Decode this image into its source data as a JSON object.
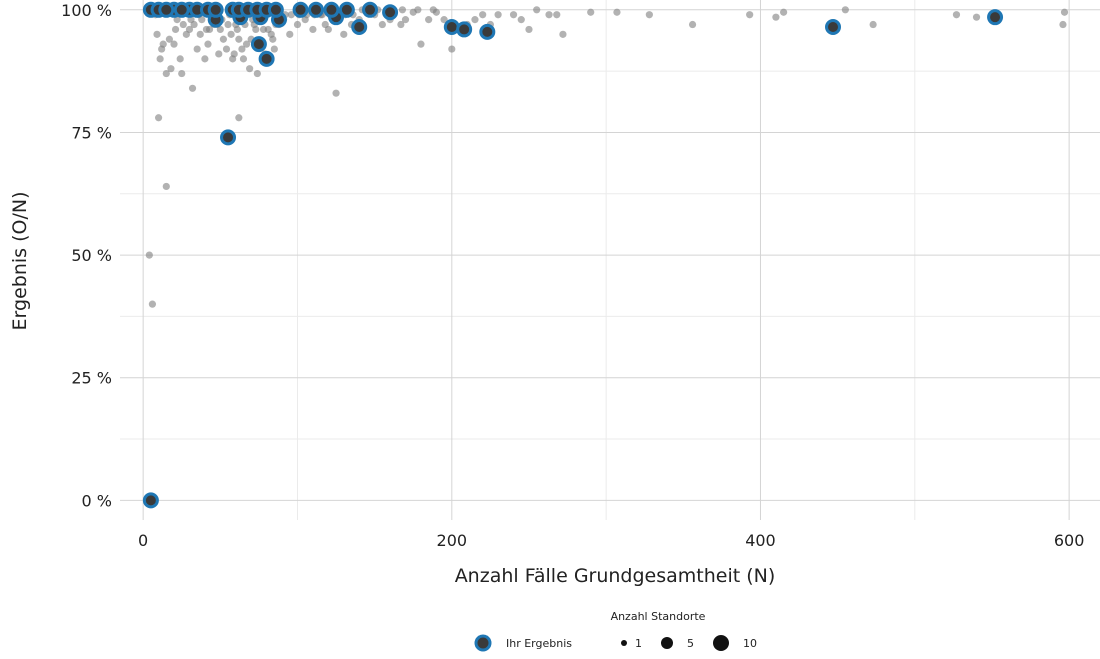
{
  "chart_data": {
    "type": "scatter",
    "xlabel": "Anzahl Fälle Grundgesamtheit (N)",
    "ylabel": "Ergebnis (O/N)",
    "xlim": [
      -15,
      620
    ],
    "ylim": [
      -4,
      102
    ],
    "x_ticks": [
      0,
      200,
      400,
      600
    ],
    "x_tick_labels": [
      "0",
      "200",
      "400",
      "600"
    ],
    "y_ticks": [
      0,
      25,
      50,
      75,
      100
    ],
    "y_tick_labels": [
      "0 %",
      "25 %",
      "50 %",
      "75 %",
      "100 %"
    ],
    "grid": true,
    "legend_position": "bottom",
    "legend": {
      "title": "Anzahl Standorte",
      "own_label": "Ihr Ergebnis",
      "size_labels": [
        "1",
        "5",
        "10"
      ]
    },
    "colors": {
      "others": "#7f7f7f",
      "own_fill": "#3a3a3a",
      "own_ring": "#1f77b4"
    },
    "series": [
      {
        "name": "Ihr Ergebnis",
        "points": [
          [
            5,
            0
          ],
          [
            55,
            74
          ],
          [
            75,
            93
          ],
          [
            80,
            90
          ],
          [
            47,
            98
          ],
          [
            63,
            98.5
          ],
          [
            76,
            98.5
          ],
          [
            88,
            98
          ],
          [
            125,
            98.5
          ],
          [
            140,
            96.5
          ],
          [
            160,
            99.5
          ],
          [
            200,
            96.5
          ],
          [
            208,
            96
          ],
          [
            223,
            95.5
          ],
          [
            447,
            96.5
          ],
          [
            552,
            98.5
          ],
          [
            5,
            100
          ],
          [
            10,
            100
          ],
          [
            20,
            100
          ],
          [
            30,
            100
          ],
          [
            35,
            100
          ],
          [
            42,
            100
          ],
          [
            47,
            100
          ],
          [
            58,
            100
          ],
          [
            62,
            100
          ],
          [
            68,
            100
          ],
          [
            74,
            100
          ],
          [
            80,
            100
          ],
          [
            86,
            100
          ],
          [
            102,
            100
          ],
          [
            112,
            100
          ],
          [
            122,
            100
          ],
          [
            132,
            100
          ],
          [
            147,
            100
          ],
          [
            15,
            100
          ],
          [
            25,
            100
          ]
        ]
      },
      {
        "name": "",
        "points": [
          [
            4,
            50
          ],
          [
            6,
            40
          ],
          [
            10,
            78
          ],
          [
            15,
            64
          ],
          [
            62,
            78
          ],
          [
            125,
            83
          ],
          [
            15,
            87
          ],
          [
            25,
            87
          ],
          [
            32,
            84
          ],
          [
            11,
            90
          ],
          [
            18,
            88
          ],
          [
            40,
            90
          ],
          [
            58,
            90
          ],
          [
            65,
            90
          ],
          [
            85,
            92
          ],
          [
            12,
            92
          ],
          [
            20,
            93
          ],
          [
            70,
            94
          ],
          [
            95,
            95
          ],
          [
            30,
            96
          ],
          [
            50,
            96
          ],
          [
            60,
            97
          ],
          [
            110,
            96
          ],
          [
            130,
            95
          ],
          [
            180,
            93
          ],
          [
            200,
            92
          ],
          [
            250,
            96
          ],
          [
            272,
            95
          ],
          [
            356,
            97
          ],
          [
            473,
            97
          ],
          [
            596,
            97
          ],
          [
            8,
            99
          ],
          [
            22,
            98
          ],
          [
            45,
            98
          ],
          [
            90,
            98
          ],
          [
            115,
            99
          ],
          [
            150,
            99
          ],
          [
            175,
            99.5
          ],
          [
            190,
            99.5
          ],
          [
            230,
            99
          ],
          [
            263,
            99
          ],
          [
            290,
            99.5
          ],
          [
            307,
            99.5
          ],
          [
            328,
            99
          ],
          [
            393,
            99
          ],
          [
            410,
            98.5
          ],
          [
            415,
            99.5
          ],
          [
            455,
            100
          ],
          [
            527,
            99
          ],
          [
            540,
            98.5
          ],
          [
            597,
            99.5
          ],
          [
            17,
            94
          ],
          [
            28,
            95
          ],
          [
            37,
            95
          ],
          [
            43,
            96
          ],
          [
            52,
            94
          ],
          [
            67,
            93
          ],
          [
            73,
            96
          ],
          [
            83,
            95
          ],
          [
            100,
            97
          ],
          [
            120,
            96
          ],
          [
            135,
            97
          ],
          [
            155,
            97
          ],
          [
            167,
            97
          ],
          [
            185,
            98
          ],
          [
            195,
            98
          ],
          [
            215,
            98
          ],
          [
            240,
            99
          ],
          [
            255,
            100
          ],
          [
            268,
            99
          ],
          [
            55,
            97
          ],
          [
            78,
            96
          ],
          [
            88,
            97
          ],
          [
            92,
            99
          ],
          [
            105,
            98
          ],
          [
            170,
            98
          ],
          [
            198,
            96
          ],
          [
            225,
            97
          ],
          [
            33,
            97
          ],
          [
            38,
            98
          ],
          [
            48,
            97
          ],
          [
            57,
            95
          ],
          [
            62,
            94
          ],
          [
            72,
            97
          ],
          [
            140,
            98
          ],
          [
            160,
            98
          ],
          [
            210,
            97
          ],
          [
            220,
            99
          ],
          [
            245,
            98
          ],
          [
            142,
            100
          ],
          [
            152,
            100
          ],
          [
            168,
            100
          ],
          [
            178,
            100
          ],
          [
            188,
            100
          ],
          [
            118,
            97
          ],
          [
            128,
            99
          ],
          [
            9,
            95
          ],
          [
            13,
            93
          ],
          [
            21,
            96
          ],
          [
            26,
            97
          ],
          [
            31,
            98
          ],
          [
            36,
            99
          ],
          [
            41,
            96
          ],
          [
            46,
            97
          ],
          [
            51,
            98
          ],
          [
            56,
            99
          ],
          [
            61,
            96
          ],
          [
            66,
            97
          ],
          [
            71,
            98
          ],
          [
            76,
            99
          ],
          [
            81,
            96
          ],
          [
            86,
            97
          ],
          [
            91,
            98
          ],
          [
            96,
            99
          ],
          [
            101,
            99
          ],
          [
            106,
            99
          ],
          [
            111,
            99
          ],
          [
            116,
            99
          ],
          [
            121,
            99
          ],
          [
            126,
            99
          ],
          [
            131,
            99
          ],
          [
            136,
            99
          ],
          [
            24,
            90
          ],
          [
            35,
            92
          ],
          [
            42,
            93
          ],
          [
            49,
            91
          ],
          [
            54,
            92
          ],
          [
            59,
            91
          ],
          [
            64,
            92
          ],
          [
            69,
            88
          ],
          [
            74,
            87
          ],
          [
            79,
            91
          ],
          [
            84,
            94
          ]
        ]
      }
    ]
  }
}
